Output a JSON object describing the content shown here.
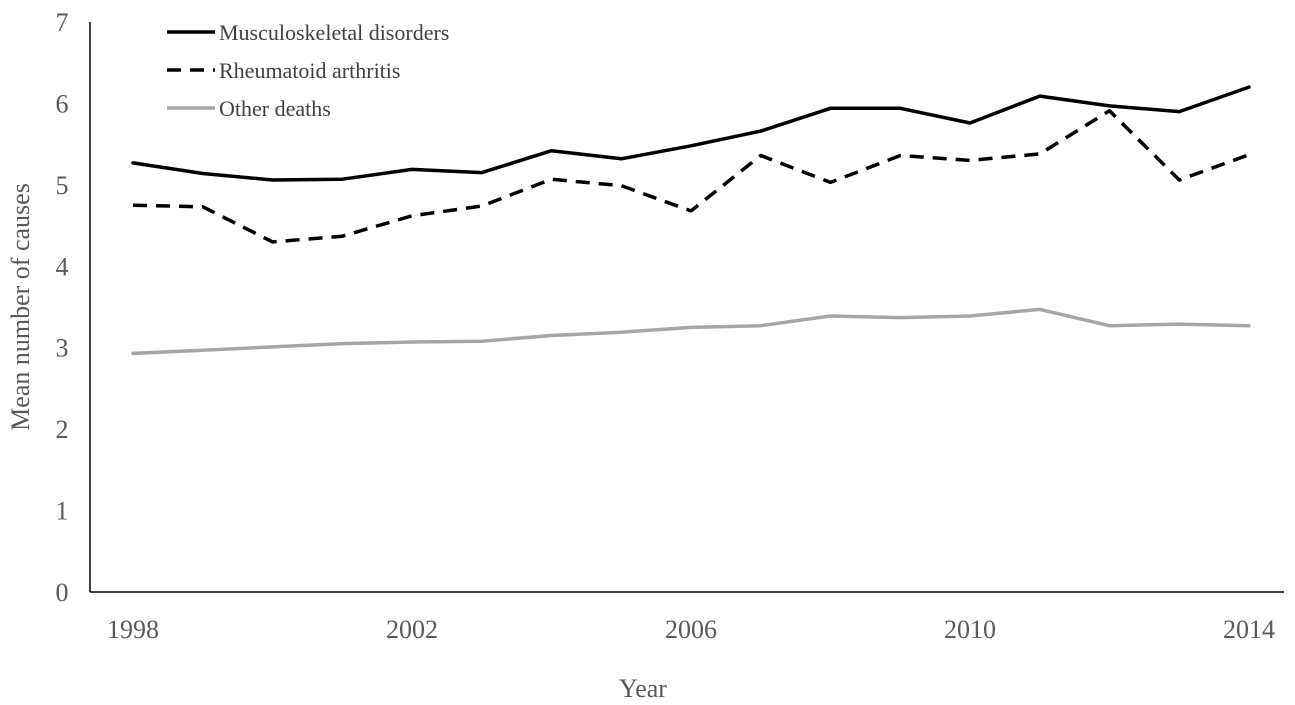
{
  "chart_data": {
    "type": "line",
    "title": "",
    "xlabel": "Year",
    "ylabel": "Mean number of causes",
    "xlim": [
      1998,
      2014
    ],
    "ylim": [
      0,
      7
    ],
    "x_ticks": [
      "1998",
      "2002",
      "2006",
      "2010",
      "2014"
    ],
    "y_ticks": [
      "0",
      "1",
      "2",
      "3",
      "4",
      "5",
      "6",
      "7"
    ],
    "grid": false,
    "legend_position": "top-left",
    "x": [
      1998,
      1999,
      2000,
      2001,
      2002,
      2003,
      2004,
      2005,
      2006,
      2007,
      2008,
      2009,
      2010,
      2011,
      2012,
      2013,
      2014
    ],
    "series": [
      {
        "name": "Musculoskeletal disorders",
        "color": "#000000",
        "style": "solid",
        "values": [
          5.27,
          5.14,
          5.06,
          5.07,
          5.19,
          5.15,
          5.42,
          5.32,
          5.48,
          5.66,
          5.94,
          5.94,
          5.76,
          6.09,
          5.97,
          5.9,
          6.2
        ]
      },
      {
        "name": "Rheumatoid arthritis",
        "color": "#000000",
        "style": "dashed",
        "values": [
          4.75,
          4.73,
          4.3,
          4.37,
          4.62,
          4.74,
          5.07,
          4.99,
          4.68,
          5.36,
          5.03,
          5.36,
          5.3,
          5.38,
          5.91,
          5.06,
          5.37
        ]
      },
      {
        "name": "Other deaths",
        "color": "#a6a6a6",
        "style": "solid",
        "values": [
          2.93,
          2.97,
          3.01,
          3.05,
          3.07,
          3.08,
          3.15,
          3.19,
          3.25,
          3.27,
          3.39,
          3.37,
          3.39,
          3.47,
          3.27,
          3.29,
          3.27
        ]
      }
    ]
  }
}
